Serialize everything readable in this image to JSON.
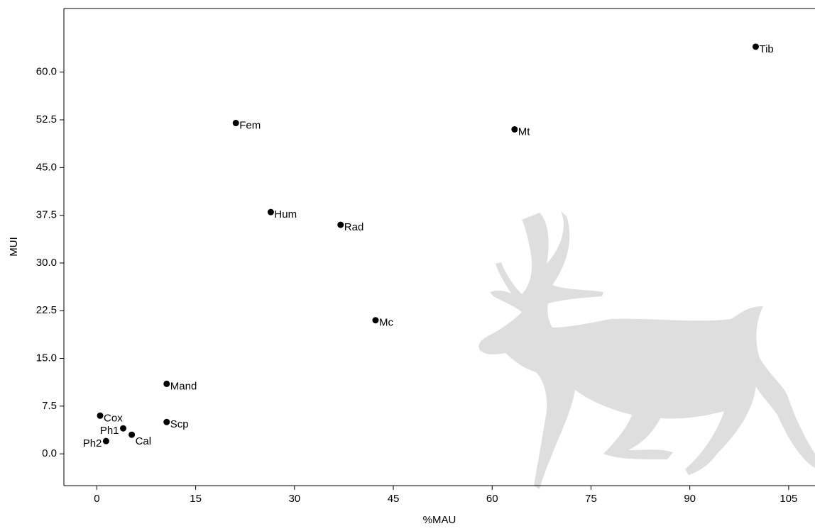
{
  "chart_data": {
    "type": "scatter",
    "x_label": "%MAU",
    "y_label": "MUI",
    "labels": [
      "Tib",
      "Fem",
      "Mt",
      "Hum",
      "Rad",
      "Mc",
      "Mand",
      "Scp",
      "Cox",
      "Ph1",
      "Cal",
      "Ph2"
    ],
    "x": [
      100,
      21.1,
      63.4,
      26.4,
      37,
      42.3,
      10.6,
      10.6,
      0.5,
      4,
      5.3,
      1.4
    ],
    "values": [
      64,
      52,
      51,
      38,
      36,
      21,
      11,
      5,
      6,
      4,
      3,
      2
    ],
    "color": "#000000",
    "xlim": [
      -5,
      109
    ],
    "ylim": [
      -5,
      70
    ],
    "xticks": [
      0,
      15,
      30,
      45,
      60,
      75,
      90,
      105
    ],
    "yticks": [
      {
        "value": 0,
        "label": "0.0"
      },
      7.5,
      {
        "value": 15,
        "label": "15.0"
      },
      22.5,
      {
        "value": 30,
        "label": "30.0"
      },
      37.5,
      {
        "value": 45,
        "label": "45.0"
      },
      52.5,
      {
        "value": 60,
        "label": "60.0"
      }
    ]
  }
}
